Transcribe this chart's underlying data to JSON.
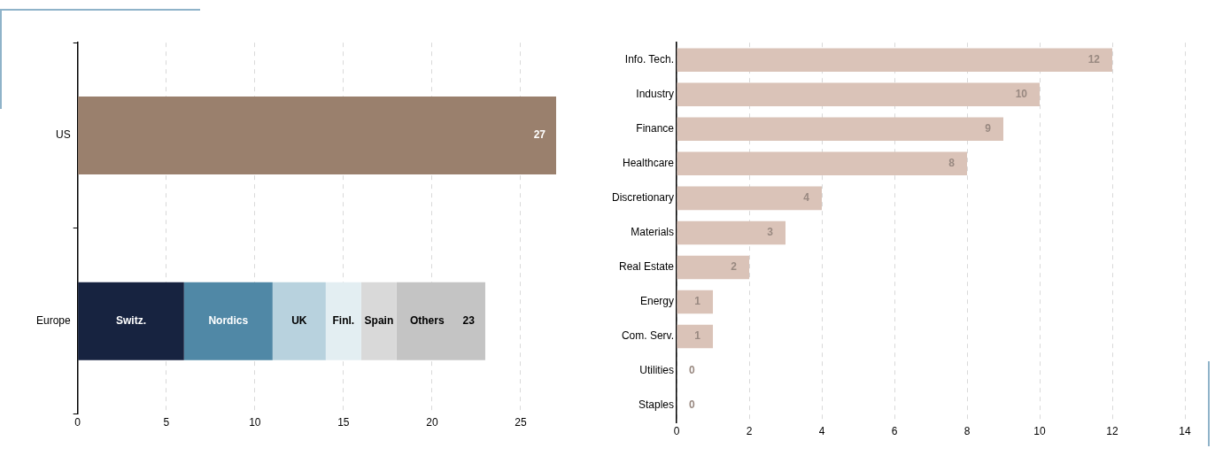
{
  "chart_data": [
    {
      "type": "bar",
      "orientation": "horizontal",
      "stacked": true,
      "categories": [
        "US",
        "Europe"
      ],
      "series": [
        {
          "color": "#9a806d",
          "values": [
            27,
            null
          ]
        },
        {
          "name": "Switz.",
          "color": "#172340",
          "values": [
            null,
            6
          ]
        },
        {
          "name": "Nordics",
          "color": "#5088a6",
          "values": [
            null,
            5
          ]
        },
        {
          "name": "UK",
          "color": "#b8d2de",
          "values": [
            null,
            3
          ]
        },
        {
          "name": "Finl.",
          "color": "#e3eef2",
          "values": [
            null,
            2
          ]
        },
        {
          "name": "Spain",
          "color": "#d9d9d9",
          "values": [
            null,
            2
          ]
        },
        {
          "name": "Others",
          "color": "#c4c4c4",
          "values": [
            null,
            5
          ]
        }
      ],
      "totals": [
        "27",
        "23"
      ],
      "xlim": [
        0,
        27
      ],
      "xticks": [
        0,
        5,
        10,
        15,
        20,
        25
      ],
      "grid": "x",
      "legend": false
    },
    {
      "type": "bar",
      "orientation": "horizontal",
      "categories": [
        "Info. Tech.",
        "Industry",
        "Finance",
        "Healthcare",
        "Discretionary",
        "Materials",
        "Real Estate",
        "Energy",
        "Com. Serv.",
        "Utilities",
        "Staples"
      ],
      "series": [
        {
          "color": "#dac3b8",
          "values": [
            12,
            10,
            9,
            8,
            4,
            3,
            2,
            1,
            1,
            0,
            0
          ]
        }
      ],
      "data_labels": true,
      "xlim": [
        0,
        14
      ],
      "xticks": [
        0,
        2,
        4,
        6,
        8,
        10,
        12,
        14
      ],
      "grid": "x",
      "legend": false
    }
  ]
}
